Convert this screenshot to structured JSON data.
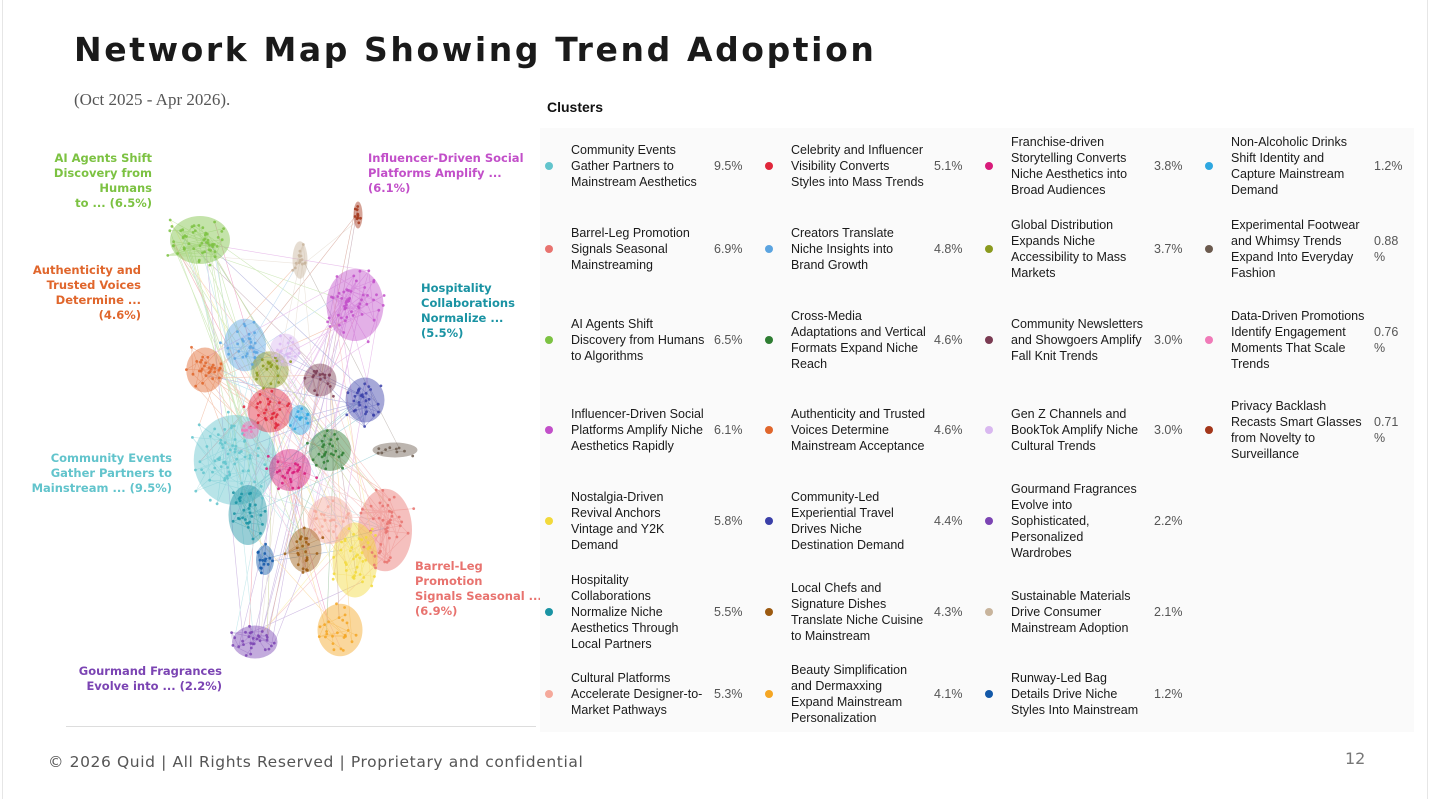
{
  "title": "Network Map Showing Trend Adoption",
  "subtitle": "(Oct 2025 - Apr 2026).",
  "clusters_heading": "Clusters",
  "network_labels": [
    {
      "text": "AI Agents Shift\nDiscovery from Humans\nto ... (6.5%)",
      "color": "#7cc242"
    },
    {
      "text": "Influencer-Driven Social\nPlatforms Amplify ...\n(6.1%)",
      "color": "#c24fc9"
    },
    {
      "text": "Authenticity and\nTrusted Voices\nDetermine ... (4.6%)",
      "color": "#e0662c"
    },
    {
      "text": "Hospitality\nCollaborations\nNormalize ... (5.5%)",
      "color": "#1a93a3"
    },
    {
      "text": "Community Events\nGather Partners to\nMainstream ... (9.5%)",
      "color": "#62c4cc"
    },
    {
      "text": "Barrel-Leg Promotion\nSignals Seasonal ...\n(6.9%)",
      "color": "#e8736f"
    },
    {
      "text": "Gourmand Fragrances\nEvolve into ... (2.2%)",
      "color": "#7b44b3"
    }
  ],
  "clusters": [
    {
      "label": "Community Events Gather Partners to Mainstream Aesthetics",
      "value": "9.5%",
      "color": "#62c4cc"
    },
    {
      "label": "Barrel-Leg Promotion Signals Seasonal Mainstreaming",
      "value": "6.9%",
      "color": "#e8736f"
    },
    {
      "label": "AI Agents Shift Discovery from Humans to Algorithms",
      "value": "6.5%",
      "color": "#7cc242"
    },
    {
      "label": "Influencer-Driven Social Platforms Amplify Niche Aesthetics Rapidly",
      "value": "6.1%",
      "color": "#c24fc9"
    },
    {
      "label": "Nostalgia-Driven Revival Anchors Vintage and Y2K Demand",
      "value": "5.8%",
      "color": "#f2d93b"
    },
    {
      "label": "Hospitality Collaborations Normalize Niche Aesthetics Through Local Partners",
      "value": "5.5%",
      "color": "#1a93a3"
    },
    {
      "label": "Cultural Platforms Accelerate Designer-to-Market Pathways",
      "value": "5.3%",
      "color": "#f5a99b"
    },
    {
      "label": "Celebrity and Influencer Visibility Converts Styles into Mass Trends",
      "value": "5.1%",
      "color": "#e0263a"
    },
    {
      "label": "Creators Translate Niche Insights into Brand Growth",
      "value": "4.8%",
      "color": "#5ba4e0"
    },
    {
      "label": "Cross-Media Adaptations and Vertical Formats Expand Niche Reach",
      "value": "4.6%",
      "color": "#2e7d32"
    },
    {
      "label": "Authenticity and Trusted Voices Determine Mainstream Acceptance",
      "value": "4.6%",
      "color": "#e0662c"
    },
    {
      "label": "Community-Led Experiential Travel Drives Niche Destination Demand",
      "value": "4.4%",
      "color": "#3a3fa8"
    },
    {
      "label": "Local Chefs and Signature Dishes Translate Niche Cuisine to Mainstream",
      "value": "4.3%",
      "color": "#9c5a10"
    },
    {
      "label": "Beauty Simplification and Dermaxxing Expand Mainstream Personalization",
      "value": "4.1%",
      "color": "#f5a623"
    },
    {
      "label": "Franchise-driven Storytelling Converts Niche Aesthetics into Broad Audiences",
      "value": "3.8%",
      "color": "#d81b7a"
    },
    {
      "label": "Global Distribution Expands Niche Accessibility to Mass Markets",
      "value": "3.7%",
      "color": "#8a9a1e"
    },
    {
      "label": "Community Newsletters and Showgoers Amplify Fall Knit Trends",
      "value": "3.0%",
      "color": "#7a3b52"
    },
    {
      "label": "Gen Z Channels and BookTok Amplify Niche Cultural Trends",
      "value": "3.0%",
      "color": "#d9b8f0"
    },
    {
      "label": "Gourmand Fragrances Evolve into Sophisticated, Personalized Wardrobes",
      "value": "2.2%",
      "color": "#7b44b3"
    },
    {
      "label": "Sustainable Materials Drive Consumer Mainstream Adoption",
      "value": "2.1%",
      "color": "#c8b49c"
    },
    {
      "label": "Runway-Led Bag Details Drive Niche Styles Into Mainstream",
      "value": "1.2%",
      "color": "#1258a8"
    },
    {
      "label": "Non-Alcoholic Drinks Shift Identity and Capture Mainstream Demand",
      "value": "1.2%",
      "color": "#2ea7e0"
    },
    {
      "label": "Experimental Footwear and Whimsy Trends Expand Into Everyday Fashion",
      "value": "0.88\n%",
      "color": "#6b5a4e"
    },
    {
      "label": "Data-Driven Promotions Identify Engagement Moments That Scale Trends",
      "value": "0.76\n%",
      "color": "#f07ab8"
    },
    {
      "label": "Privacy Backlash Recasts Smart Glasses from Novelty to Surveillance",
      "value": "0.71\n%",
      "color": "#a3361a"
    }
  ],
  "footer": "© 2026 Quid | All Rights Reserved | Proprietary and confidential",
  "page_number": "12"
}
